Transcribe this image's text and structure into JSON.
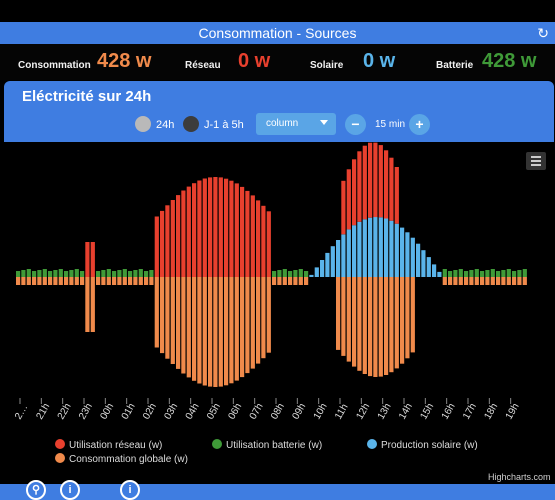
{
  "header": {
    "title": "Consommation - Sources",
    "refresh_icon": "refresh-icon"
  },
  "kpis": [
    {
      "label": "Consommation",
      "value": "428 w",
      "color": "#f08a4b"
    },
    {
      "label": "Réseau",
      "value": "0 w",
      "color": "#e8402e"
    },
    {
      "label": "Solaire",
      "value": "0 w",
      "color": "#5ab4ea"
    },
    {
      "label": "Batterie",
      "value": "428 w",
      "color": "#3f9a38"
    }
  ],
  "panel": {
    "title": "Eléctricité sur 24h",
    "radio_24h": "24h",
    "radio_j1": "J-1 à 5h",
    "chart_type": "column",
    "step_minus": "−",
    "step_value": "15 min",
    "step_plus": "+"
  },
  "chart_data": {
    "type": "bar",
    "x_ticks": [
      "2…",
      "21h",
      "22h",
      "23h",
      "00h",
      "01h",
      "02h",
      "03h",
      "04h",
      "05h",
      "06h",
      "07h",
      "08h",
      "09h",
      "10h",
      "11h",
      "12h",
      "13h",
      "14h",
      "15h",
      "16h",
      "17h",
      "18h",
      "19h"
    ],
    "series": [
      {
        "name": "Utilisation réseau (w)",
        "color": "#e8402e"
      },
      {
        "name": "Utilisation batterie (w)",
        "color": "#3f9a38"
      },
      {
        "name": "Production solaire (w)",
        "color": "#5ab4ea"
      },
      {
        "name": "Consommation globale (w)",
        "color": "#f08a4b"
      }
    ]
  },
  "credit": "Highcharts.com"
}
